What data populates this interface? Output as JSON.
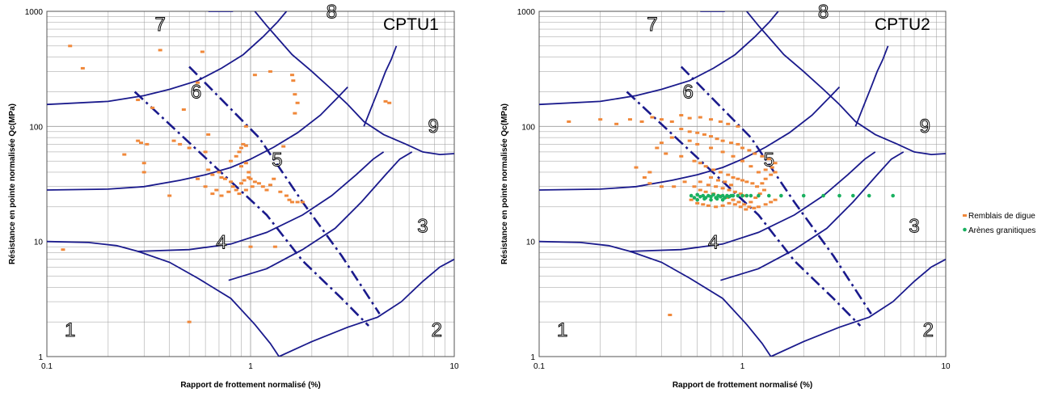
{
  "colors": {
    "boundary": "#1a1a8c",
    "dashed": "#1a1a8c",
    "remblais": "#f0883a",
    "arenes": "#1ab060",
    "grid": "#9a9a9a"
  },
  "legend": {
    "items": [
      {
        "label": "Remblais de digue",
        "color": "#f0883a"
      },
      {
        "label": "Arènes granitiques",
        "color": "#1ab060"
      }
    ]
  },
  "chart_data": [
    {
      "type": "scatter",
      "title": "CPTU1",
      "xlabel": "Rapport de frottement normalisé (%)",
      "ylabel": "Résistance en pointe normalisée Qc(MPa)",
      "xscale": "log",
      "yscale": "log",
      "xlim": [
        0.1,
        10
      ],
      "ylim": [
        1,
        1000
      ],
      "x_ticks": [
        "0.1",
        "1",
        "10"
      ],
      "y_ticks": [
        "1",
        "10",
        "100",
        "1000"
      ],
      "grid": true,
      "zone_labels": [
        {
          "text": "1",
          "x": 0.13,
          "y": 1.5
        },
        {
          "text": "2",
          "x": 8.2,
          "y": 1.5
        },
        {
          "text": "3",
          "x": 7.0,
          "y": 12
        },
        {
          "text": "4",
          "x": 0.72,
          "y": 8.7
        },
        {
          "text": "5",
          "x": 1.35,
          "y": 45
        },
        {
          "text": "6",
          "x": 0.54,
          "y": 175
        },
        {
          "text": "7",
          "x": 0.36,
          "y": 680
        },
        {
          "text": "8",
          "x": 2.5,
          "y": 870
        },
        {
          "text": "9",
          "x": 7.9,
          "y": 88
        }
      ],
      "series": [
        {
          "name": "Remblais de digue",
          "points": [
            [
              0.13,
              500
            ],
            [
              0.15,
              320
            ],
            [
              0.36,
              460
            ],
            [
              0.58,
              445
            ],
            [
              0.28,
              170
            ],
            [
              0.33,
              145
            ],
            [
              0.47,
              140
            ],
            [
              0.55,
              240
            ],
            [
              1.05,
              280
            ],
            [
              1.25,
              300
            ],
            [
              1.6,
              280
            ],
            [
              1.62,
              250
            ],
            [
              1.65,
              190
            ],
            [
              1.7,
              160
            ],
            [
              1.65,
              130
            ],
            [
              4.6,
              165
            ],
            [
              4.8,
              160
            ],
            [
              0.62,
              85
            ],
            [
              0.95,
              100
            ],
            [
              0.28,
              75
            ],
            [
              0.29,
              72
            ],
            [
              0.31,
              70
            ],
            [
              0.24,
              57
            ],
            [
              0.3,
              48
            ],
            [
              0.3,
              40
            ],
            [
              0.42,
              75
            ],
            [
              0.45,
              70
            ],
            [
              0.5,
              65
            ],
            [
              0.6,
              60
            ],
            [
              0.8,
              50
            ],
            [
              0.85,
              55
            ],
            [
              0.88,
              60
            ],
            [
              0.9,
              65
            ],
            [
              0.92,
              70
            ],
            [
              0.95,
              68
            ],
            [
              0.9,
              45
            ],
            [
              0.95,
              48
            ],
            [
              0.98,
              40
            ],
            [
              0.62,
              42
            ],
            [
              0.65,
              38
            ],
            [
              0.7,
              40
            ],
            [
              0.72,
              36
            ],
            [
              0.75,
              35
            ],
            [
              0.8,
              33
            ],
            [
              0.82,
              30
            ],
            [
              0.85,
              28
            ],
            [
              0.9,
              32
            ],
            [
              0.93,
              34
            ],
            [
              0.98,
              36
            ],
            [
              1.0,
              35
            ],
            [
              1.05,
              33
            ],
            [
              1.1,
              32
            ],
            [
              1.15,
              30
            ],
            [
              1.2,
              28
            ],
            [
              1.25,
              31
            ],
            [
              1.3,
              35
            ],
            [
              0.6,
              30
            ],
            [
              0.55,
              35
            ],
            [
              0.68,
              28
            ],
            [
              0.72,
              25
            ],
            [
              0.65,
              26
            ],
            [
              0.78,
              27
            ],
            [
              0.88,
              26
            ],
            [
              0.95,
              28
            ],
            [
              1.02,
              30
            ],
            [
              1.4,
              27
            ],
            [
              1.5,
              25
            ],
            [
              1.55,
              23
            ],
            [
              1.6,
              22
            ],
            [
              1.7,
              22
            ],
            [
              1.8,
              22
            ],
            [
              0.4,
              25
            ],
            [
              1.45,
              67
            ],
            [
              0.12,
              8.5
            ],
            [
              0.5,
              2
            ],
            [
              1.0,
              9
            ],
            [
              1.32,
              9
            ]
          ]
        }
      ]
    },
    {
      "type": "scatter",
      "title": "CPTU2",
      "xlabel": "Rapport de frottement normalisé (%)",
      "ylabel": "Résistance en pointe normalisée Qc(MPa)",
      "xscale": "log",
      "yscale": "log",
      "xlim": [
        0.1,
        10
      ],
      "ylim": [
        1,
        1000
      ],
      "x_ticks": [
        "0.1",
        "1",
        "10"
      ],
      "y_ticks": [
        "1",
        "10",
        "100",
        "1000"
      ],
      "grid": true,
      "zone_labels": [
        {
          "text": "1",
          "x": 0.13,
          "y": 1.5
        },
        {
          "text": "2",
          "x": 8.2,
          "y": 1.5
        },
        {
          "text": "3",
          "x": 7.0,
          "y": 12
        },
        {
          "text": "4",
          "x": 0.72,
          "y": 8.7
        },
        {
          "text": "5",
          "x": 1.35,
          "y": 45
        },
        {
          "text": "6",
          "x": 0.54,
          "y": 175
        },
        {
          "text": "7",
          "x": 0.36,
          "y": 680
        },
        {
          "text": "8",
          "x": 2.5,
          "y": 870
        },
        {
          "text": "9",
          "x": 7.9,
          "y": 88
        }
      ],
      "series": [
        {
          "name": "Remblais de digue",
          "points": [
            [
              0.14,
              110
            ],
            [
              0.2,
              115
            ],
            [
              0.24,
              105
            ],
            [
              0.28,
              115
            ],
            [
              0.32,
              110
            ],
            [
              0.36,
              120
            ],
            [
              0.4,
              115
            ],
            [
              0.45,
              110
            ],
            [
              0.5,
              125
            ],
            [
              0.55,
              118
            ],
            [
              0.62,
              120
            ],
            [
              0.7,
              115
            ],
            [
              0.78,
              110
            ],
            [
              0.85,
              105
            ],
            [
              0.95,
              100
            ],
            [
              0.5,
              95
            ],
            [
              0.55,
              90
            ],
            [
              0.6,
              88
            ],
            [
              0.65,
              85
            ],
            [
              0.7,
              82
            ],
            [
              0.75,
              78
            ],
            [
              0.8,
              75
            ],
            [
              0.88,
              72
            ],
            [
              0.95,
              70
            ],
            [
              1.0,
              65
            ],
            [
              1.08,
              62
            ],
            [
              1.15,
              58
            ],
            [
              1.25,
              55
            ],
            [
              1.35,
              52
            ],
            [
              1.45,
              48
            ],
            [
              1.4,
              44
            ],
            [
              1.3,
              42
            ],
            [
              1.2,
              40
            ],
            [
              1.1,
              45
            ],
            [
              1.0,
              50
            ],
            [
              0.9,
              55
            ],
            [
              0.8,
              60
            ],
            [
              0.7,
              65
            ],
            [
              0.6,
              70
            ],
            [
              0.55,
              75
            ],
            [
              0.45,
              80
            ],
            [
              0.4,
              72
            ],
            [
              0.38,
              65
            ],
            [
              0.42,
              58
            ],
            [
              0.5,
              55
            ],
            [
              0.58,
              50
            ],
            [
              0.62,
              48
            ],
            [
              0.66,
              45
            ],
            [
              0.72,
              42
            ],
            [
              0.78,
              40
            ],
            [
              0.85,
              38
            ],
            [
              0.9,
              36
            ],
            [
              0.95,
              35
            ],
            [
              1.0,
              34
            ],
            [
              1.05,
              33
            ],
            [
              1.12,
              32
            ],
            [
              1.18,
              30
            ],
            [
              1.25,
              32
            ],
            [
              1.3,
              35
            ],
            [
              1.38,
              38
            ],
            [
              1.45,
              40
            ],
            [
              0.35,
              40
            ],
            [
              0.33,
              36
            ],
            [
              0.35,
              32
            ],
            [
              0.4,
              30
            ],
            [
              0.46,
              30
            ],
            [
              0.52,
              33
            ],
            [
              0.58,
              30
            ],
            [
              0.62,
              28
            ],
            [
              0.66,
              27
            ],
            [
              0.72,
              26
            ],
            [
              0.78,
              25
            ],
            [
              0.84,
              24
            ],
            [
              0.9,
              23
            ],
            [
              0.96,
              22
            ],
            [
              1.02,
              21
            ],
            [
              1.08,
              20
            ],
            [
              1.14,
              19.5
            ],
            [
              1.2,
              20
            ],
            [
              1.3,
              21
            ],
            [
              1.38,
              22
            ],
            [
              1.45,
              23
            ],
            [
              0.56,
              23
            ],
            [
              0.6,
              21.5
            ],
            [
              0.64,
              21
            ],
            [
              0.68,
              20.5
            ],
            [
              0.74,
              20
            ],
            [
              0.8,
              20.5
            ],
            [
              0.86,
              21.5
            ],
            [
              0.92,
              21
            ],
            [
              0.98,
              20
            ],
            [
              1.04,
              19
            ],
            [
              1.1,
              22
            ],
            [
              1.16,
              24
            ],
            [
              1.22,
              26
            ],
            [
              1.28,
              28
            ],
            [
              0.62,
              33
            ],
            [
              0.68,
              31
            ],
            [
              0.74,
              30
            ],
            [
              0.8,
              29
            ],
            [
              0.86,
              28
            ],
            [
              0.92,
              27
            ],
            [
              0.98,
              26
            ],
            [
              1.04,
              25
            ],
            [
              0.7,
              36
            ],
            [
              0.76,
              34
            ],
            [
              0.82,
              33
            ],
            [
              0.88,
              31
            ],
            [
              0.3,
              44
            ],
            [
              0.44,
              2.3
            ]
          ]
        },
        {
          "name": "Arènes granitiques",
          "points": [
            [
              0.56,
              25
            ],
            [
              0.58,
              24
            ],
            [
              0.6,
              25.5
            ],
            [
              0.62,
              24.5
            ],
            [
              0.64,
              25
            ],
            [
              0.66,
              24
            ],
            [
              0.68,
              25
            ],
            [
              0.7,
              24.5
            ],
            [
              0.72,
              25.5
            ],
            [
              0.74,
              24
            ],
            [
              0.76,
              25
            ],
            [
              0.78,
              24.5
            ],
            [
              0.8,
              25
            ],
            [
              0.82,
              24
            ],
            [
              0.84,
              25
            ],
            [
              0.86,
              24.5
            ],
            [
              0.88,
              25
            ],
            [
              0.65,
              23.5
            ],
            [
              0.7,
              23
            ],
            [
              0.75,
              23.5
            ],
            [
              0.8,
              23
            ],
            [
              0.6,
              23
            ],
            [
              0.9,
              25
            ],
            [
              0.95,
              25
            ],
            [
              1.0,
              25
            ],
            [
              1.05,
              25
            ],
            [
              1.1,
              25
            ],
            [
              1.2,
              25
            ],
            [
              1.35,
              25
            ],
            [
              1.55,
              25
            ],
            [
              2.0,
              25
            ],
            [
              2.5,
              25
            ],
            [
              3.0,
              25
            ],
            [
              3.5,
              25
            ],
            [
              4.2,
              25
            ],
            [
              5.5,
              25
            ]
          ]
        }
      ]
    }
  ]
}
